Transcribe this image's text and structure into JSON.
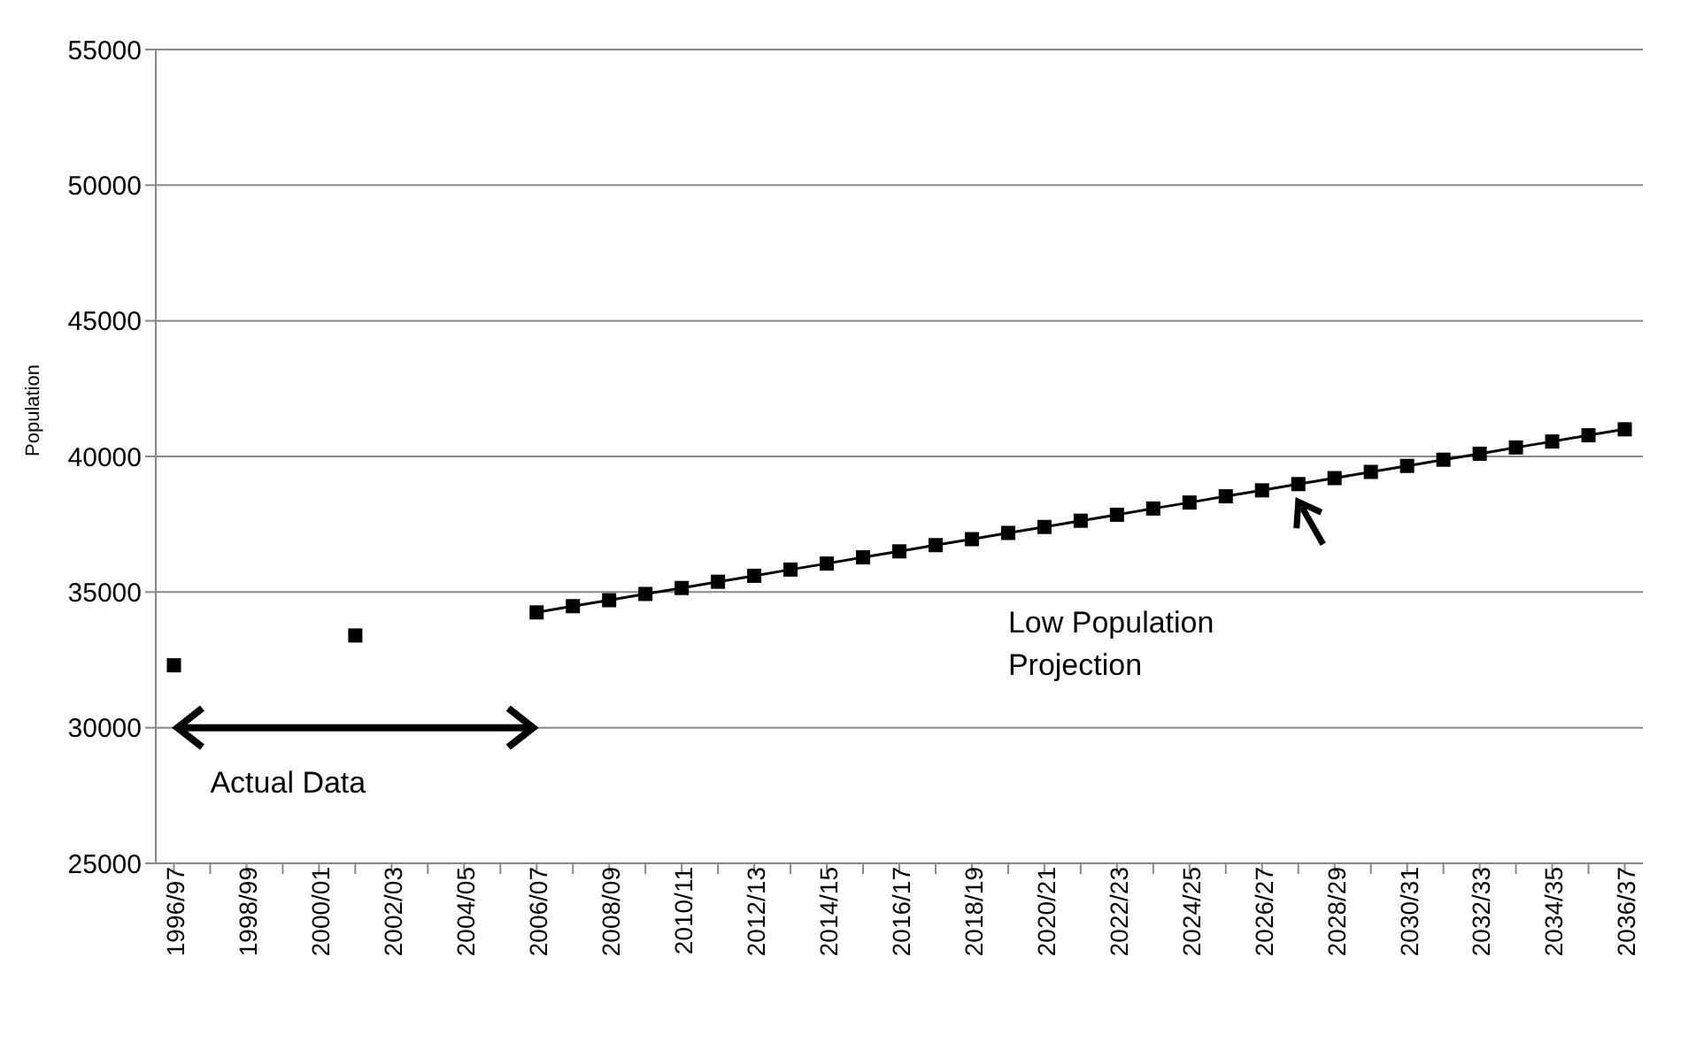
{
  "chart_data": {
    "type": "line",
    "ylabel": "Population",
    "categories": [
      "1996/97",
      null,
      "1998/99",
      null,
      "2000/01",
      null,
      "2002/03",
      null,
      "2004/05",
      null,
      "2006/07",
      null,
      "2008/09",
      null,
      "2010/11",
      null,
      "2012/13",
      null,
      "2014/15",
      null,
      "2016/17",
      null,
      "2018/19",
      null,
      "2020/21",
      null,
      "2022/23",
      null,
      "2024/25",
      null,
      "2026/27",
      null,
      "2028/29",
      null,
      "2030/31",
      null,
      "2032/33",
      null,
      "2034/35",
      null,
      "2036/37"
    ],
    "series": [
      {
        "type": "scatter",
        "color": "#000000",
        "values": [
          32300,
          null,
          null,
          null,
          null,
          33400,
          null,
          null,
          null,
          null,
          null,
          null,
          null,
          null,
          null,
          null,
          null,
          null,
          null,
          null,
          null,
          null,
          null,
          null,
          null,
          null,
          null,
          null,
          null,
          null,
          null,
          null,
          null,
          null,
          null,
          null,
          null,
          null,
          null,
          null,
          null
        ]
      },
      {
        "color": "#000000",
        "values": [
          null,
          null,
          null,
          null,
          null,
          null,
          null,
          null,
          null,
          null,
          34250,
          34480,
          34700,
          34930,
          35150,
          35380,
          35600,
          35830,
          36050,
          36280,
          36500,
          36730,
          36950,
          37180,
          37400,
          37630,
          37850,
          38080,
          38300,
          38530,
          38750,
          38980,
          39200,
          39430,
          39650,
          39880,
          40100,
          40330,
          40550,
          40780,
          41000
        ]
      }
    ],
    "ylim": [
      25000,
      55000
    ],
    "yticks": [
      25000,
      30000,
      35000,
      40000,
      45000,
      50000,
      55000
    ],
    "grid": "y",
    "legend": false,
    "marker": "square",
    "line_style": "solid",
    "annotations": [
      "Actual Data",
      "Low Population\nProjection"
    ]
  }
}
